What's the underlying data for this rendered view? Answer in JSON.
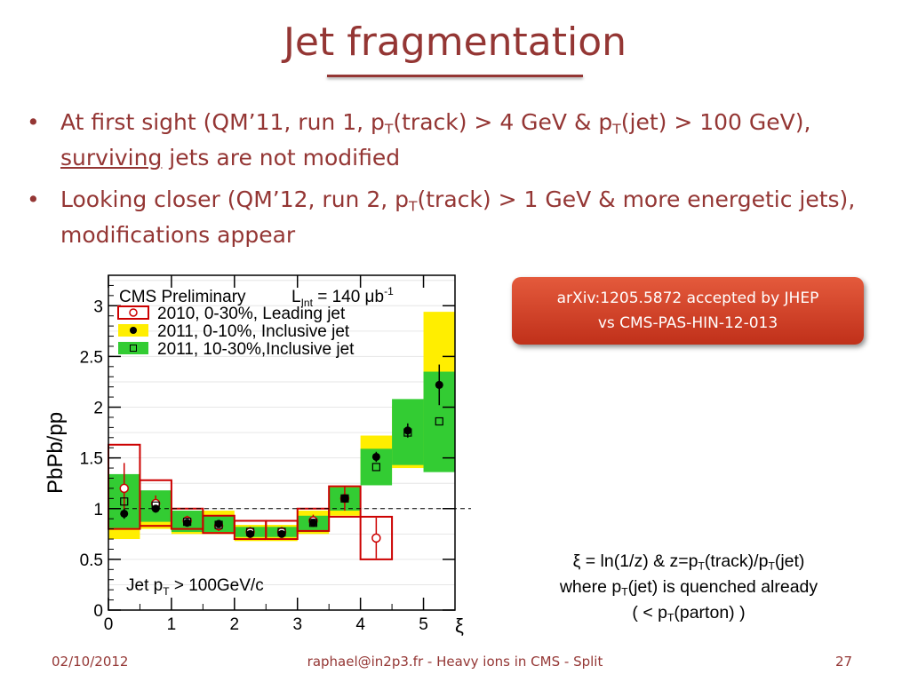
{
  "slide": {
    "title": "Jet fragmentation",
    "bullets": [
      {
        "a": "At first sight (QM’11, run 1, p",
        "b": "T",
        "c": "(track) > 4 GeV & p",
        "d": "T",
        "e": "(jet) > 100 GeV), ",
        "f": "surviving",
        "g": " jets are not modified"
      },
      {
        "a": "Looking closer (QM’12, run 2, p",
        "b": "T",
        "c": "(track) > 1 GeV & more energetic jets), modifications appear"
      }
    ],
    "bullet_symbol": "•",
    "ref_line1": "arXiv:1205.5872 accepted by JHEP",
    "ref_line2": "vs CMS-PAS-HIN-12-013",
    "xi_def": {
      "l1a": "ξ = ln(1/z) & z=p",
      "l1b": "T",
      "l1c": "(track)/p",
      "l1d": "T",
      "l1e": "(jet)",
      "l2a": "where p",
      "l2b": "T",
      "l2c": "(jet) is quenched already",
      "l3a": "( < p",
      "l3b": "T",
      "l3c": "(parton) )"
    },
    "footer_date": "02/10/2012",
    "footer_center": "raphael@in2p3.fr - Heavy ions in CMS - Split",
    "footer_page": "27",
    "colors": {
      "title": "#943634",
      "ref_box": "#d2401f",
      "yellow": "#ffee00",
      "green": "#33cc33",
      "red": "#cc0000"
    }
  },
  "chart_data": {
    "type": "scatter",
    "ylabel": "PbPb/pp",
    "xlabel": "ξ",
    "xlim": [
      0,
      5.5
    ],
    "ylim": [
      0,
      3.3
    ],
    "xticks": [
      "0",
      "1",
      "2",
      "3",
      "4",
      "5"
    ],
    "yticks": [
      "0",
      "0.5",
      "1",
      "1.5",
      "2",
      "2.5",
      "3"
    ],
    "reference_line": 1,
    "header": "CMS Preliminary",
    "lumi": {
      "a": "L",
      "b": "Int",
      "c": " = 140 μb",
      "d": "-1"
    },
    "annotation": {
      "a": "Jet p",
      "b": "T",
      "c": " > 100GeV/c"
    },
    "bins": [
      [
        0,
        0.5
      ],
      [
        0.5,
        1
      ],
      [
        1,
        1.5
      ],
      [
        1.5,
        2
      ],
      [
        2,
        2.5
      ],
      [
        2.5,
        3
      ],
      [
        3,
        3.5
      ],
      [
        3.5,
        4
      ],
      [
        4,
        4.5
      ],
      [
        4.5,
        5
      ],
      [
        5,
        5.5
      ]
    ],
    "series": [
      {
        "name": "2010, 0-30%,  Leading jet",
        "x": [
          0.25,
          0.75,
          1.25,
          1.75,
          2.25,
          2.75,
          3.25,
          3.75,
          4.25
        ],
        "y": [
          1.2,
          1.05,
          0.88,
          0.83,
          0.77,
          0.77,
          0.88,
          1.1,
          0.71
        ],
        "err": [
          0.25,
          0.08,
          0.05,
          0.05,
          0.05,
          0.05,
          0.06,
          0.12,
          0.2
        ],
        "sys": [
          [
            0.8,
            1.63
          ],
          [
            0.83,
            1.28
          ],
          [
            0.8,
            1.0
          ],
          [
            0.76,
            0.93
          ],
          [
            0.7,
            0.88
          ],
          [
            0.7,
            0.88
          ],
          [
            0.78,
            1.0
          ],
          [
            0.92,
            1.22
          ],
          [
            0.5,
            0.92
          ]
        ]
      },
      {
        "name": "2011, 0-10%,  Inclusive jet",
        "x": [
          0.25,
          0.75,
          1.25,
          1.75,
          2.25,
          2.75,
          3.25,
          3.75,
          4.25,
          4.75,
          5.25
        ],
        "y": [
          0.95,
          1.0,
          0.86,
          0.85,
          0.75,
          0.75,
          0.86,
          1.1,
          1.51,
          1.77,
          2.22
        ],
        "err": [
          0.05,
          0.04,
          0.03,
          0.03,
          0.03,
          0.03,
          0.03,
          0.04,
          0.05,
          0.07,
          0.2
        ],
        "sys": [
          [
            0.7,
            1.22
          ],
          [
            0.8,
            1.13
          ],
          [
            0.75,
            0.98
          ],
          [
            0.75,
            0.98
          ],
          [
            0.68,
            0.84
          ],
          [
            0.68,
            0.84
          ],
          [
            0.75,
            0.98
          ],
          [
            0.93,
            1.22
          ],
          [
            1.28,
            1.72
          ],
          [
            1.4,
            2.02
          ],
          [
            1.4,
            2.94
          ]
        ]
      },
      {
        "name": "2011, 10-30%,Inclusive jet",
        "x": [
          0.25,
          0.75,
          1.25,
          1.75,
          2.25,
          2.75,
          3.25,
          3.75,
          4.25,
          4.75,
          5.25
        ],
        "y": [
          1.07,
          1.03,
          0.87,
          0.84,
          0.77,
          0.77,
          0.86,
          1.1,
          1.41,
          1.75,
          1.86
        ],
        "err": [
          0.05,
          0.04,
          0.03,
          0.03,
          0.03,
          0.03,
          0.03,
          0.04,
          0.05,
          0.07,
          0.2
        ],
        "sys": [
          [
            0.81,
            1.34
          ],
          [
            0.87,
            1.18
          ],
          [
            0.77,
            0.98
          ],
          [
            0.77,
            0.93
          ],
          [
            0.72,
            0.82
          ],
          [
            0.72,
            0.82
          ],
          [
            0.77,
            0.93
          ],
          [
            0.98,
            1.21
          ],
          [
            1.23,
            1.59
          ],
          [
            1.43,
            2.08
          ],
          [
            1.36,
            2.35
          ]
        ]
      }
    ]
  }
}
